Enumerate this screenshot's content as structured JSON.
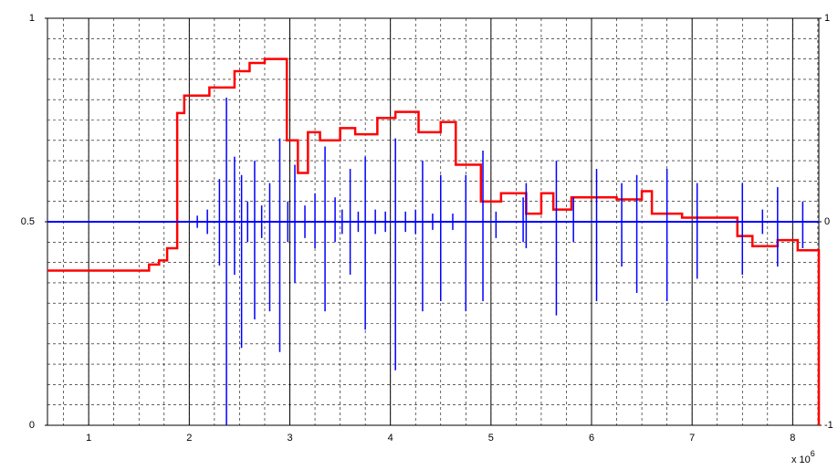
{
  "chart_data": {
    "type": "step-stem",
    "xlim": [
      0.59,
      8.26
    ],
    "xticks": [
      1,
      2,
      3,
      4,
      5,
      6,
      7,
      8
    ],
    "ylim": [
      0,
      1
    ],
    "yticks": [
      0,
      0.5,
      1
    ],
    "y2lim": [
      -1,
      1
    ],
    "y2ticks": [
      -1,
      0,
      1
    ],
    "grid": true,
    "x_multiplier": {
      "base": "x 10",
      "exponent": "6"
    },
    "series": [
      {
        "color": "#ff0000",
        "x": [
          0.59,
          1.6,
          1.7,
          1.78,
          1.88,
          1.95,
          2.2,
          2.45,
          2.6,
          2.75,
          2.97,
          3.08,
          3.18,
          3.3,
          3.5,
          3.65,
          3.87,
          4.05,
          4.28,
          4.5,
          4.65,
          4.9,
          5.1,
          5.35,
          5.5,
          5.62,
          5.8,
          6.25,
          6.5,
          6.6,
          6.9,
          7.45,
          7.6,
          7.85,
          8.05,
          8.26
        ],
        "values": [
          0.38,
          0.395,
          0.405,
          0.435,
          0.767,
          0.81,
          0.83,
          0.87,
          0.89,
          0.9,
          0.7,
          0.62,
          0.72,
          0.7,
          0.73,
          0.715,
          0.755,
          0.77,
          0.72,
          0.745,
          0.64,
          0.55,
          0.57,
          0.52,
          0.57,
          0.53,
          0.56,
          0.555,
          0.575,
          0.52,
          0.51,
          0.465,
          0.44,
          0.455,
          0.43,
          0
        ]
      },
      {
        "color": "#0000ff",
        "axis": "y2",
        "x": [
          2.08,
          2.18,
          2.3,
          2.37,
          2.45,
          2.52,
          2.58,
          2.65,
          2.72,
          2.8,
          2.9,
          2.98,
          3.05,
          3.15,
          3.25,
          3.35,
          3.45,
          3.52,
          3.6,
          3.68,
          3.75,
          3.85,
          3.95,
          4.05,
          4.15,
          4.25,
          4.32,
          4.42,
          4.5,
          4.62,
          4.75,
          4.92,
          5.05,
          5.32,
          5.35,
          5.65,
          5.82,
          6.05,
          6.3,
          6.45,
          6.75,
          7.05,
          7.5,
          7.7,
          7.85,
          8.1
        ],
        "values": [
          0.03,
          0.06,
          0.21,
          0.61,
          0.32,
          0.23,
          0.1,
          0.3,
          0.08,
          0.19,
          0.41,
          0.1,
          0.28,
          0.08,
          0.14,
          0.37,
          0.12,
          0.06,
          0.26,
          0.05,
          0.32,
          0.06,
          0.05,
          0.41,
          0.05,
          0.06,
          0.3,
          0.04,
          0.23,
          0.04,
          0.23,
          0.35,
          0.05,
          0.12,
          0.19,
          0.3,
          0.12,
          0.26,
          0.19,
          0.23,
          0.26,
          0.19,
          0.19,
          0.06,
          0.17,
          0.1
        ],
        "low": [
          -0.03,
          -0.06,
          -0.215,
          -1.0,
          -0.26,
          -0.62,
          -0.1,
          -0.48,
          -0.08,
          -0.44,
          -0.64,
          -0.1,
          -0.3,
          -0.08,
          -0.13,
          -0.44,
          -0.1,
          -0.06,
          -0.26,
          -0.05,
          -0.53,
          -0.06,
          -0.05,
          -0.73,
          -0.05,
          -0.06,
          -0.44,
          -0.04,
          -0.39,
          -0.04,
          -0.44,
          -0.39,
          -0.08,
          -0.1,
          -0.13,
          -0.46,
          -0.1,
          -0.39,
          -0.22,
          -0.35,
          -0.39,
          -0.28,
          -0.26,
          -0.06,
          -0.22,
          -0.13
        ]
      }
    ]
  }
}
